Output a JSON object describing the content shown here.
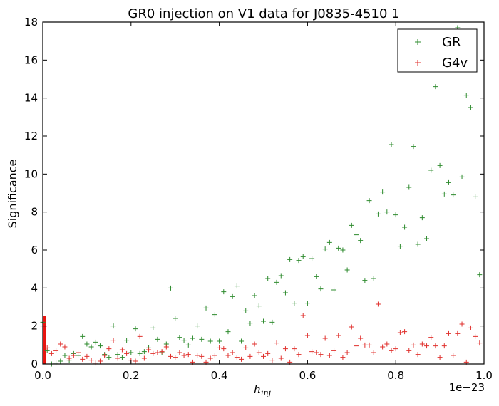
{
  "chart_data": {
    "type": "scatter",
    "title": "GR0 injection on V1 data for J0835-4510  1",
    "xlabel": "h_inj",
    "ylabel": "Significance",
    "x_offset_label": "1e−23",
    "xlim": [
      0.0,
      1.0
    ],
    "ylim": [
      0,
      18
    ],
    "x_ticks": [
      "0.0",
      "0.2",
      "0.4",
      "0.6",
      "0.8",
      "1.0"
    ],
    "y_ticks": [
      "0",
      "2",
      "4",
      "6",
      "8",
      "10",
      "12",
      "14",
      "16",
      "18"
    ],
    "grid": false,
    "legend_placement": "top-right",
    "marker": "+",
    "series": [
      {
        "name": "GR",
        "color": "#2e8b2e",
        "points": [
          [
            0.0,
            2.2
          ],
          [
            0.01,
            0.7
          ],
          [
            0.02,
            0.0
          ],
          [
            0.03,
            0.05
          ],
          [
            0.04,
            0.15
          ],
          [
            0.05,
            0.45
          ],
          [
            0.06,
            0.2
          ],
          [
            0.07,
            0.55
          ],
          [
            0.08,
            0.45
          ],
          [
            0.09,
            1.45
          ],
          [
            0.1,
            1.05
          ],
          [
            0.11,
            0.9
          ],
          [
            0.12,
            1.15
          ],
          [
            0.13,
            0.95
          ],
          [
            0.14,
            0.5
          ],
          [
            0.15,
            0.35
          ],
          [
            0.16,
            2.0
          ],
          [
            0.17,
            0.5
          ],
          [
            0.18,
            0.35
          ],
          [
            0.19,
            1.25
          ],
          [
            0.2,
            0.6
          ],
          [
            0.21,
            1.85
          ],
          [
            0.22,
            0.55
          ],
          [
            0.23,
            0.65
          ],
          [
            0.24,
            0.85
          ],
          [
            0.25,
            1.9
          ],
          [
            0.26,
            1.3
          ],
          [
            0.27,
            0.6
          ],
          [
            0.28,
            1.05
          ],
          [
            0.29,
            4.0
          ],
          [
            0.3,
            2.4
          ],
          [
            0.31,
            1.4
          ],
          [
            0.32,
            1.25
          ],
          [
            0.33,
            1.0
          ],
          [
            0.34,
            1.35
          ],
          [
            0.35,
            2.0
          ],
          [
            0.36,
            1.3
          ],
          [
            0.37,
            2.95
          ],
          [
            0.38,
            1.2
          ],
          [
            0.39,
            2.6
          ],
          [
            0.4,
            1.2
          ],
          [
            0.41,
            3.8
          ],
          [
            0.42,
            1.7
          ],
          [
            0.43,
            3.55
          ],
          [
            0.44,
            4.1
          ],
          [
            0.45,
            1.2
          ],
          [
            0.46,
            2.8
          ],
          [
            0.47,
            2.15
          ],
          [
            0.48,
            3.6
          ],
          [
            0.49,
            3.05
          ],
          [
            0.5,
            2.25
          ],
          [
            0.51,
            4.5
          ],
          [
            0.52,
            2.2
          ],
          [
            0.53,
            4.3
          ],
          [
            0.54,
            4.65
          ],
          [
            0.55,
            3.75
          ],
          [
            0.56,
            5.5
          ],
          [
            0.57,
            3.2
          ],
          [
            0.58,
            5.45
          ],
          [
            0.59,
            5.65
          ],
          [
            0.6,
            3.2
          ],
          [
            0.61,
            5.55
          ],
          [
            0.62,
            4.6
          ],
          [
            0.63,
            3.95
          ],
          [
            0.64,
            6.05
          ],
          [
            0.65,
            6.4
          ],
          [
            0.66,
            3.9
          ],
          [
            0.67,
            6.1
          ],
          [
            0.68,
            6.0
          ],
          [
            0.69,
            4.95
          ],
          [
            0.7,
            7.3
          ],
          [
            0.71,
            6.8
          ],
          [
            0.72,
            6.5
          ],
          [
            0.73,
            4.4
          ],
          [
            0.74,
            8.6
          ],
          [
            0.75,
            4.5
          ],
          [
            0.76,
            7.9
          ],
          [
            0.77,
            9.05
          ],
          [
            0.78,
            8.0
          ],
          [
            0.79,
            11.55
          ],
          [
            0.8,
            7.85
          ],
          [
            0.81,
            6.2
          ],
          [
            0.82,
            7.2
          ],
          [
            0.83,
            9.3
          ],
          [
            0.84,
            11.45
          ],
          [
            0.85,
            6.3
          ],
          [
            0.86,
            7.7
          ],
          [
            0.87,
            6.6
          ],
          [
            0.88,
            10.2
          ],
          [
            0.89,
            14.6
          ],
          [
            0.9,
            10.45
          ],
          [
            0.91,
            8.95
          ],
          [
            0.92,
            9.55
          ],
          [
            0.93,
            8.9
          ],
          [
            0.94,
            17.7
          ],
          [
            0.95,
            9.85
          ],
          [
            0.96,
            14.15
          ],
          [
            0.97,
            13.5
          ],
          [
            0.98,
            8.8
          ],
          [
            0.99,
            4.7
          ]
        ]
      },
      {
        "name": "G4v",
        "color": "#e0302d",
        "points": [
          [
            0.0,
            2.0
          ],
          [
            0.01,
            0.85
          ],
          [
            0.02,
            0.55
          ],
          [
            0.03,
            0.7
          ],
          [
            0.04,
            1.05
          ],
          [
            0.05,
            0.9
          ],
          [
            0.06,
            0.3
          ],
          [
            0.07,
            0.45
          ],
          [
            0.08,
            0.6
          ],
          [
            0.09,
            0.25
          ],
          [
            0.1,
            0.4
          ],
          [
            0.11,
            0.2
          ],
          [
            0.12,
            0.05
          ],
          [
            0.13,
            0.15
          ],
          [
            0.14,
            0.45
          ],
          [
            0.15,
            0.8
          ],
          [
            0.16,
            1.25
          ],
          [
            0.17,
            0.3
          ],
          [
            0.18,
            0.75
          ],
          [
            0.19,
            0.55
          ],
          [
            0.2,
            0.2
          ],
          [
            0.21,
            0.15
          ],
          [
            0.22,
            1.45
          ],
          [
            0.23,
            0.3
          ],
          [
            0.24,
            0.75
          ],
          [
            0.25,
            0.55
          ],
          [
            0.26,
            0.6
          ],
          [
            0.27,
            0.65
          ],
          [
            0.28,
            0.9
          ],
          [
            0.29,
            0.4
          ],
          [
            0.3,
            0.35
          ],
          [
            0.31,
            0.6
          ],
          [
            0.32,
            0.45
          ],
          [
            0.33,
            0.5
          ],
          [
            0.34,
            0.1
          ],
          [
            0.35,
            0.45
          ],
          [
            0.36,
            0.4
          ],
          [
            0.37,
            0.1
          ],
          [
            0.38,
            0.3
          ],
          [
            0.39,
            0.45
          ],
          [
            0.4,
            0.85
          ],
          [
            0.41,
            0.8
          ],
          [
            0.42,
            0.45
          ],
          [
            0.43,
            0.6
          ],
          [
            0.44,
            0.35
          ],
          [
            0.45,
            0.25
          ],
          [
            0.46,
            0.85
          ],
          [
            0.47,
            0.4
          ],
          [
            0.48,
            1.05
          ],
          [
            0.49,
            0.6
          ],
          [
            0.5,
            0.4
          ],
          [
            0.51,
            0.55
          ],
          [
            0.52,
            0.2
          ],
          [
            0.53,
            1.1
          ],
          [
            0.54,
            0.3
          ],
          [
            0.55,
            0.8
          ],
          [
            0.56,
            0.1
          ],
          [
            0.57,
            0.8
          ],
          [
            0.58,
            0.5
          ],
          [
            0.59,
            2.55
          ],
          [
            0.6,
            1.5
          ],
          [
            0.61,
            0.65
          ],
          [
            0.62,
            0.6
          ],
          [
            0.63,
            0.5
          ],
          [
            0.64,
            1.35
          ],
          [
            0.65,
            0.45
          ],
          [
            0.66,
            0.7
          ],
          [
            0.67,
            1.5
          ],
          [
            0.68,
            0.35
          ],
          [
            0.69,
            0.6
          ],
          [
            0.7,
            1.95
          ],
          [
            0.71,
            0.95
          ],
          [
            0.72,
            1.35
          ],
          [
            0.73,
            1.0
          ],
          [
            0.74,
            1.0
          ],
          [
            0.75,
            0.6
          ],
          [
            0.76,
            3.15
          ],
          [
            0.77,
            0.9
          ],
          [
            0.78,
            1.05
          ],
          [
            0.79,
            0.7
          ],
          [
            0.8,
            0.8
          ],
          [
            0.81,
            1.65
          ],
          [
            0.82,
            1.7
          ],
          [
            0.83,
            0.7
          ],
          [
            0.84,
            1.0
          ],
          [
            0.85,
            0.5
          ],
          [
            0.86,
            1.05
          ],
          [
            0.87,
            0.95
          ],
          [
            0.88,
            1.4
          ],
          [
            0.89,
            0.95
          ],
          [
            0.9,
            0.35
          ],
          [
            0.91,
            0.95
          ],
          [
            0.92,
            1.6
          ],
          [
            0.93,
            0.45
          ],
          [
            0.94,
            1.6
          ],
          [
            0.95,
            2.1
          ],
          [
            0.96,
            0.1
          ],
          [
            0.97,
            1.9
          ],
          [
            0.98,
            1.45
          ],
          [
            0.99,
            1.1
          ]
        ]
      }
    ],
    "highlight_band": {
      "color": "#e8140f",
      "x": [
        0.0,
        0.005
      ],
      "y": [
        0,
        2.55
      ]
    }
  }
}
